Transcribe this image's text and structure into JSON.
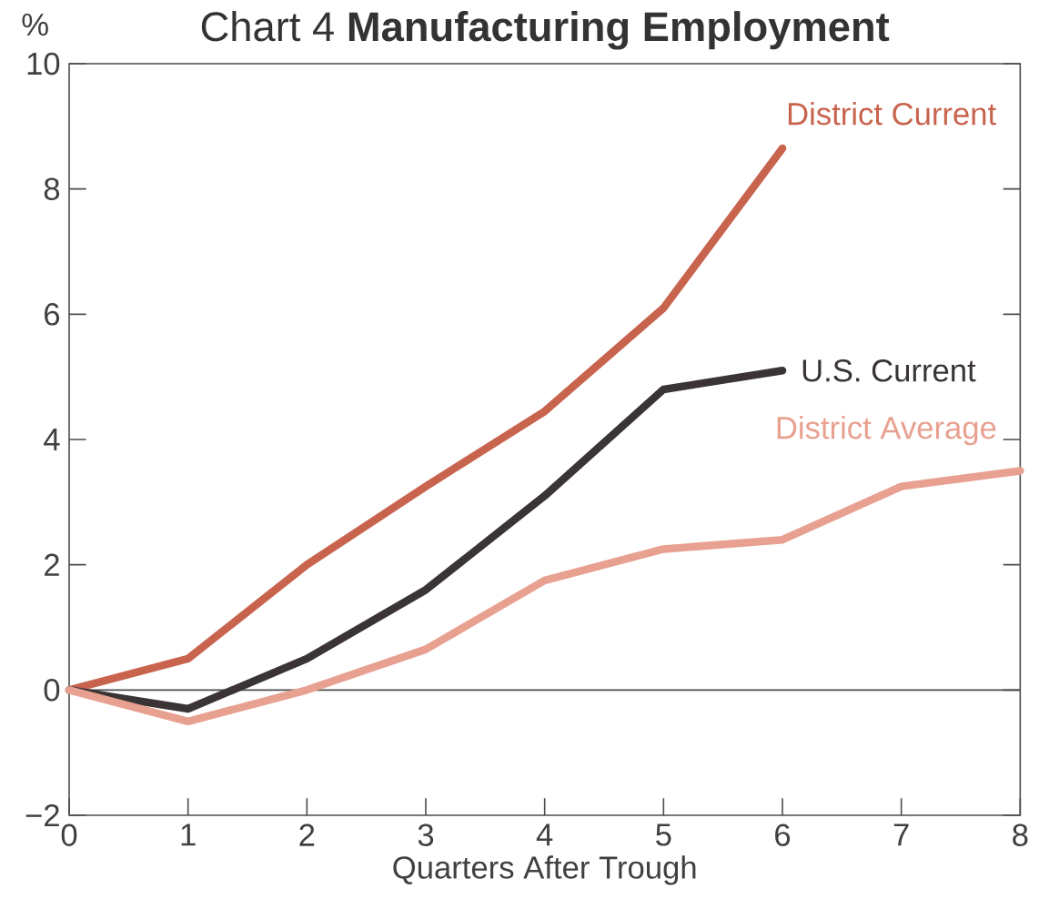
{
  "chart_data": {
    "type": "line",
    "title": "Chart 4 **Manufacturing Employment**",
    "xlabel": "Quarters After Trough",
    "ylabel": "%",
    "x": [
      0,
      1,
      2,
      3,
      4,
      5,
      6,
      7,
      8
    ],
    "series": [
      {
        "name": "District Current",
        "color": "#c8644e",
        "values": [
          0,
          0.5,
          2.0,
          3.25,
          4.45,
          6.1,
          8.65,
          null,
          null
        ]
      },
      {
        "name": "U.S. Current",
        "color": "#3a3434",
        "values": [
          0,
          -0.3,
          0.5,
          1.6,
          3.1,
          4.8,
          5.1,
          null,
          null
        ]
      },
      {
        "name": "District Average",
        "color": "#e8a090",
        "values": [
          0,
          -0.5,
          0.0,
          0.65,
          1.75,
          2.25,
          2.4,
          3.25,
          3.5
        ]
      }
    ],
    "xlim": [
      0,
      8
    ],
    "ylim": [
      -2,
      10
    ],
    "xticks": [
      0,
      1,
      2,
      3,
      4,
      5,
      6,
      7,
      8
    ],
    "yticks": [
      {
        "value": -2,
        "label": "−2"
      },
      0,
      2,
      4,
      6,
      8,
      10
    ],
    "ref_lines": [
      {
        "axis": "y",
        "value": 0
      }
    ],
    "grid": false
  }
}
